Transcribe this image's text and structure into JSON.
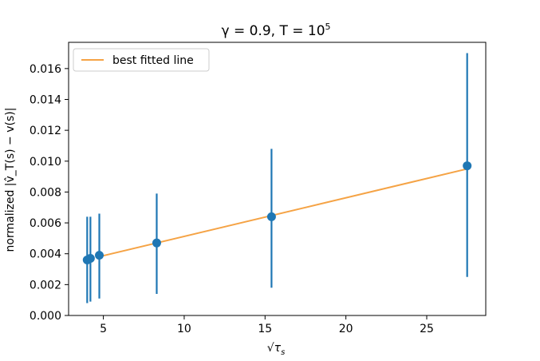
{
  "chart_data": {
    "type": "scatter",
    "title": "γ = 0.9, T = 10⁵",
    "title_parts": {
      "prefix": "γ = 0.9, T = 10",
      "sup": "5"
    },
    "xlabel": "√τ_s",
    "xlabel_parts": {
      "radical": "√",
      "main": "τ",
      "sub": "s"
    },
    "ylabel": "normalized |v̂_T(s) − v(s)|",
    "xlim": [
      2.85,
      28.65
    ],
    "ylim": [
      0.0,
      0.0177
    ],
    "x_ticks": [
      5,
      10,
      15,
      20,
      25
    ],
    "x_tick_labels": [
      "5",
      "10",
      "15",
      "20",
      "25"
    ],
    "y_ticks": [
      0.0,
      0.002,
      0.004,
      0.006,
      0.008,
      0.01,
      0.012,
      0.014,
      0.016
    ],
    "y_tick_labels": [
      "0.000",
      "0.002",
      "0.004",
      "0.006",
      "0.008",
      "0.010",
      "0.012",
      "0.014",
      "0.016"
    ],
    "grid": false,
    "legend_position": "top-left",
    "series": [
      {
        "name": "best fitted line",
        "type": "line",
        "x": [
          4.7,
          27.5
        ],
        "y": [
          0.0038,
          0.0095
        ],
        "color": "#f5a345"
      },
      {
        "type": "errorbar",
        "x": [
          4.0,
          4.2,
          4.75,
          8.3,
          15.4,
          27.5
        ],
        "y": [
          0.0036,
          0.0037,
          0.0039,
          0.0047,
          0.0064,
          0.0097
        ],
        "err_low": [
          0.0008,
          0.0009,
          0.0011,
          0.0014,
          0.0018,
          0.0025
        ],
        "err_high": [
          0.0064,
          0.0064,
          0.0066,
          0.0079,
          0.0108,
          0.017
        ],
        "color": "#1f77b4"
      }
    ]
  }
}
